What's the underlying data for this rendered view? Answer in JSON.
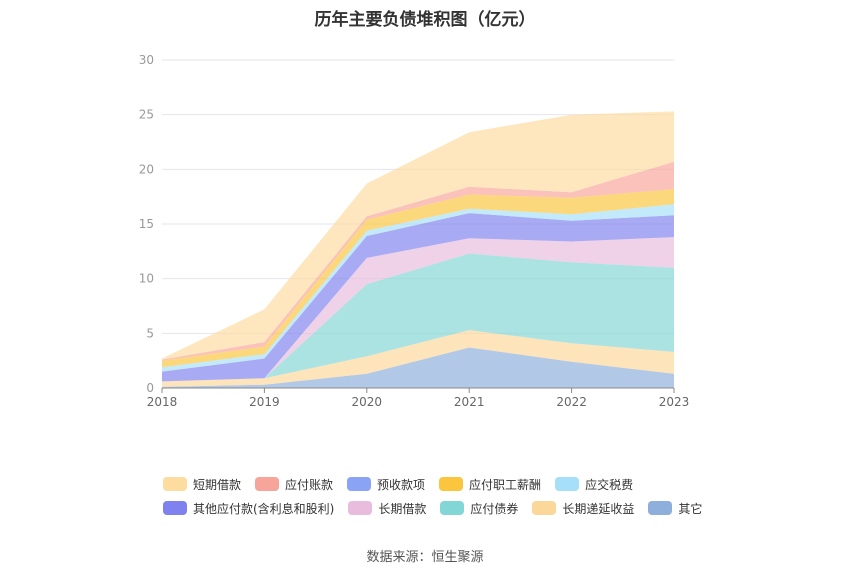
{
  "title": "历年主要负债堆积图（亿元）",
  "source_label": "数据来源：恒生聚源",
  "chart_data": {
    "type": "area",
    "stacked": true,
    "title": "历年主要负债堆积图（亿元）",
    "x": [
      "2018",
      "2019",
      "2020",
      "2021",
      "2022",
      "2023"
    ],
    "ylim": [
      0,
      30
    ],
    "yticks": [
      0,
      5,
      10,
      15,
      20,
      25,
      30
    ],
    "grid": true,
    "legend_position": "bottom",
    "series": [
      {
        "name": "其它",
        "color": "#8eaedc",
        "values": [
          0.1,
          0.3,
          1.3,
          3.7,
          2.4,
          1.3
        ]
      },
      {
        "name": "长期递延收益",
        "color": "#fcd79a",
        "values": [
          0.5,
          0.6,
          1.6,
          1.6,
          1.7,
          2.0
        ]
      },
      {
        "name": "应付债券",
        "color": "#83d6d6",
        "values": [
          0,
          0,
          6.6,
          7.0,
          7.4,
          7.7
        ]
      },
      {
        "name": "长期借款",
        "color": "#e8bcdc",
        "values": [
          0,
          0,
          2.4,
          1.4,
          1.9,
          2.8
        ]
      },
      {
        "name": "其他应付款(含利息和股利)",
        "color": "#7f81ee",
        "values": [
          0.9,
          1.8,
          2.0,
          2.3,
          1.9,
          2.0
        ]
      },
      {
        "name": "应交税费",
        "color": "#a6e0f8",
        "values": [
          0.4,
          0.4,
          0.5,
          0.4,
          0.6,
          1.0
        ]
      },
      {
        "name": "应付职工薪酬",
        "color": "#fbc63e",
        "values": [
          0.6,
          0.7,
          1.0,
          1.3,
          1.5,
          1.4
        ]
      },
      {
        "name": "预收款项",
        "color": "#8aa4f5",
        "values": [
          0,
          0,
          0,
          0,
          0,
          0
        ]
      },
      {
        "name": "应付账款",
        "color": "#f7a59a",
        "values": [
          0.1,
          0.4,
          0.3,
          0.7,
          0.5,
          2.5
        ]
      },
      {
        "name": "短期借款",
        "color": "#fddca0",
        "values": [
          0.1,
          3.0,
          3.0,
          5.0,
          7.1,
          4.6
        ]
      }
    ]
  },
  "legend": {
    "row1": [
      {
        "label": "短期借款",
        "color": "#fddca0"
      },
      {
        "label": "应付账款",
        "color": "#f7a59a"
      },
      {
        "label": "预收款项",
        "color": "#8aa4f5"
      },
      {
        "label": "应付职工薪酬",
        "color": "#fbc63e"
      },
      {
        "label": "应交税费",
        "color": "#a6e0f8"
      }
    ],
    "row2": [
      {
        "label": "其他应付款(含利息和股利)",
        "color": "#7f81ee"
      },
      {
        "label": "长期借款",
        "color": "#e8bcdc"
      },
      {
        "label": "应付债券",
        "color": "#83d6d6"
      },
      {
        "label": "长期递延收益",
        "color": "#fcd79a"
      },
      {
        "label": "其它",
        "color": "#8eaedc"
      }
    ]
  }
}
